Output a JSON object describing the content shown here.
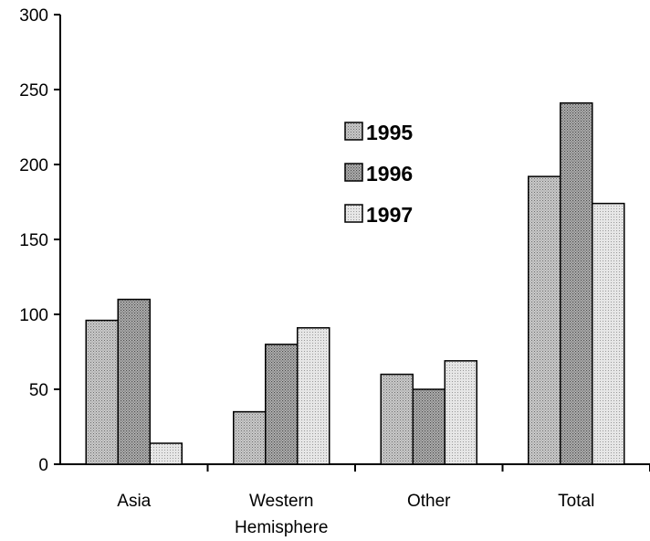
{
  "chart_data": {
    "type": "bar",
    "categories": [
      "Asia",
      "Western Hemisphere",
      "Other",
      "Total"
    ],
    "category_lines": [
      [
        "Asia"
      ],
      [
        "Western",
        "Hemisphere"
      ],
      [
        "Other"
      ],
      [
        "Total"
      ]
    ],
    "series": [
      {
        "name": "1995",
        "values": [
          96,
          35,
          60,
          192
        ],
        "pattern": "dots-medium"
      },
      {
        "name": "1996",
        "values": [
          110,
          80,
          50,
          241
        ],
        "pattern": "dots-dense"
      },
      {
        "name": "1997",
        "values": [
          14,
          91,
          69,
          174
        ],
        "pattern": "dots-light"
      }
    ],
    "ylim": [
      0,
      300
    ],
    "yticks": [
      0,
      50,
      100,
      150,
      200,
      250,
      300
    ],
    "title": "",
    "xlabel": "",
    "ylabel": "",
    "grid": false,
    "legend_position": "center"
  }
}
